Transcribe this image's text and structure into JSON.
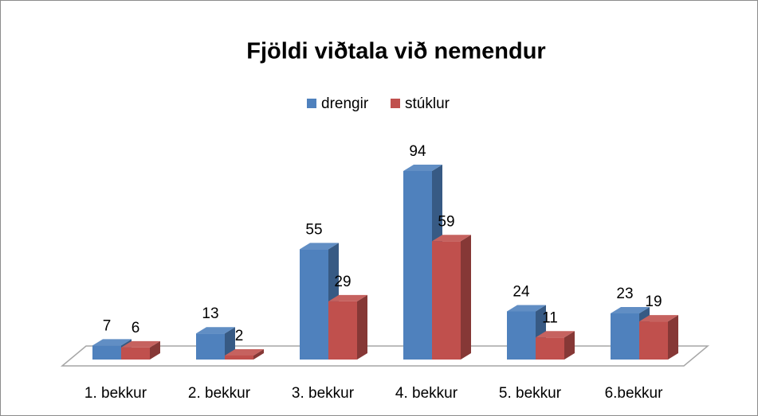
{
  "chart_data": {
    "type": "bar3d",
    "title": "Fjöldi viðtala við nemendur",
    "categories": [
      "1. bekkur",
      "2. bekkur",
      "3. bekkur",
      "4. bekkur",
      "5. bekkur",
      "6.bekkur"
    ],
    "series": [
      {
        "name": "drengir",
        "color": "#4f81bd",
        "values": [
          7,
          13,
          55,
          94,
          24,
          23
        ]
      },
      {
        "name": "stúklur",
        "color": "#c0504d",
        "values": [
          6,
          2,
          29,
          59,
          11,
          19
        ]
      }
    ],
    "legend": "top"
  }
}
